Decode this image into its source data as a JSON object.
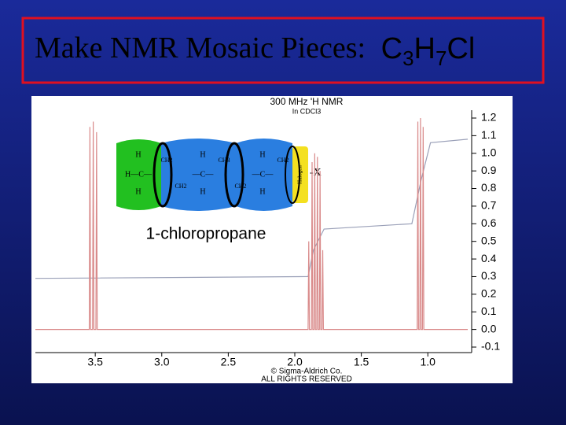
{
  "slide_title": {
    "text": "Make NMR Mosaic Pieces:",
    "formula": [
      "C",
      "3",
      "H",
      "7",
      "Cl"
    ]
  },
  "mosaic": {
    "name": "1-chloropropane",
    "pieces": [
      {
        "top": "H",
        "middle": "H—C—",
        "bottom": "H",
        "tag": "CH2"
      },
      {
        "top": "H",
        "middle": "—C—",
        "bottom": "H",
        "tag": "CH3",
        "tag2": "CH2"
      },
      {
        "top": "H",
        "middle": "—C—",
        "bottom": "H",
        "tag": "CH2",
        "tag2": "CH2"
      }
    ],
    "end_tag": "Halogen",
    "end": "-X"
  },
  "chart_data": {
    "type": "line",
    "title": "300 MHz 'H NMR",
    "subtitle": "In CDCl3",
    "annotations": [
      "© Sigma-Aldrich Co.",
      "ALL RIGHTS RESERVED"
    ],
    "x": [
      3.95,
      3.545,
      3.54,
      3.535,
      3.52,
      3.515,
      3.51,
      3.495,
      3.49,
      3.485,
      1.9,
      1.895,
      1.89,
      1.875,
      1.87,
      1.865,
      1.855,
      1.85,
      1.845,
      1.835,
      1.83,
      1.825,
      1.815,
      1.81,
      1.805,
      1.795,
      1.79,
      1.785,
      1.08,
      1.075,
      1.07,
      1.06,
      1.055,
      1.05,
      1.04,
      1.035,
      1.03,
      0.7
    ],
    "series": [
      {
        "color": "#d98a8a",
        "values": [
          0,
          0,
          1.15,
          0,
          0,
          1.18,
          0,
          0,
          1.12,
          0,
          0,
          0.5,
          0,
          0,
          0.95,
          0,
          0,
          1.0,
          0,
          0,
          0.98,
          0,
          0,
          0.9,
          0,
          0,
          0.45,
          0,
          0,
          1.18,
          0,
          0,
          1.2,
          0,
          0,
          1.15,
          0,
          0
        ]
      }
    ],
    "integral": {
      "color": "#9aa0b8",
      "x": [
        3.95,
        1.9,
        1.86,
        1.78,
        1.12,
        1.05,
        0.98,
        0.7
      ],
      "values": [
        0.29,
        0.3,
        0.45,
        0.57,
        0.6,
        0.85,
        1.06,
        1.08
      ]
    },
    "xlim": [
      3.95,
      0.7
    ],
    "xticks": [
      3.5,
      {
        "value": 3,
        "label": "3.0"
      },
      2.5,
      {
        "value": 2,
        "label": "2.0"
      },
      1.5,
      {
        "value": 1,
        "label": "1.0"
      }
    ],
    "ylim": [
      -0.1,
      1.2
    ],
    "yticks": [
      1.2,
      1.1,
      {
        "value": 1,
        "label": "1.0"
      },
      0.9,
      0.8,
      0.7,
      0.6,
      0.5,
      0.4,
      0.3,
      0.2,
      0.1,
      {
        "value": 0,
        "label": "0.0"
      },
      -0.1
    ]
  }
}
